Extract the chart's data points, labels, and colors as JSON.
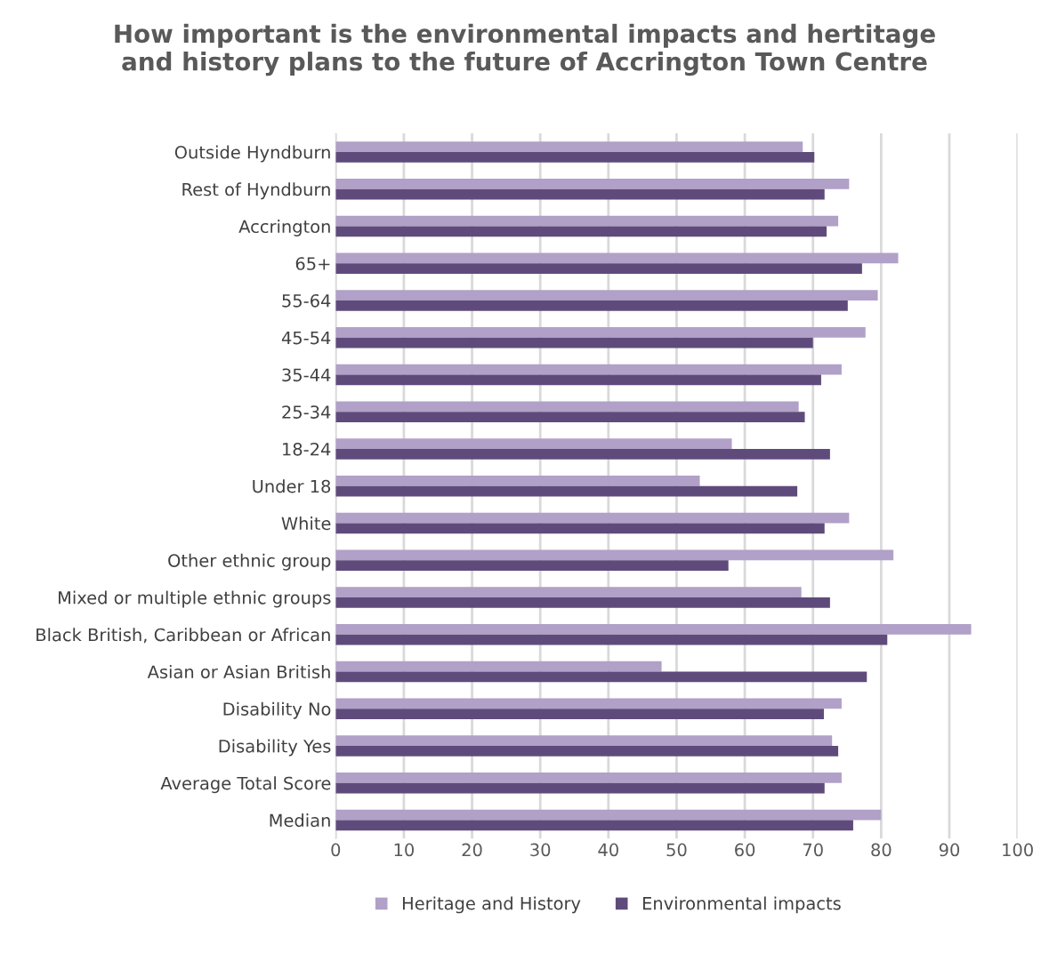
{
  "chart_data": {
    "type": "bar",
    "orientation": "horizontal",
    "title": "How important is the environmental impacts and hertitage\nand history plans to the future of Accrington Town Centre",
    "categories": [
      "Outside Hyndburn",
      "Rest of Hyndburn",
      "Accrington",
      "65+",
      "55-64",
      "45-54",
      "35-44",
      "25-34",
      "18-24",
      "Under 18",
      "White",
      "Other ethnic group",
      "Mixed or multiple ethnic groups",
      "Black British, Caribbean or African",
      "Asian or Asian British",
      "Disability No",
      "Disability Yes",
      "Average Total Score",
      "Median"
    ],
    "series": [
      {
        "name": "Heritage and History",
        "color": "#b1a0c7",
        "values": [
          68.5,
          75.3,
          73.7,
          82.5,
          79.5,
          77.7,
          74.2,
          67.9,
          58.1,
          53.4,
          75.3,
          81.8,
          68.3,
          93.2,
          47.8,
          74.2,
          72.8,
          74.2,
          80.0
        ]
      },
      {
        "name": "Environmental impacts",
        "color": "#5f4b7b",
        "values": [
          70.2,
          71.7,
          72.0,
          77.2,
          75.1,
          70.0,
          71.2,
          68.8,
          72.5,
          67.7,
          71.7,
          57.6,
          72.5,
          80.9,
          77.9,
          71.6,
          73.7,
          71.7,
          75.9
        ]
      }
    ],
    "xlim": [
      0,
      100
    ],
    "xticks": [
      0,
      10,
      20,
      30,
      40,
      50,
      60,
      70,
      80,
      90,
      100
    ],
    "grid": "x",
    "legend": "bottom"
  }
}
